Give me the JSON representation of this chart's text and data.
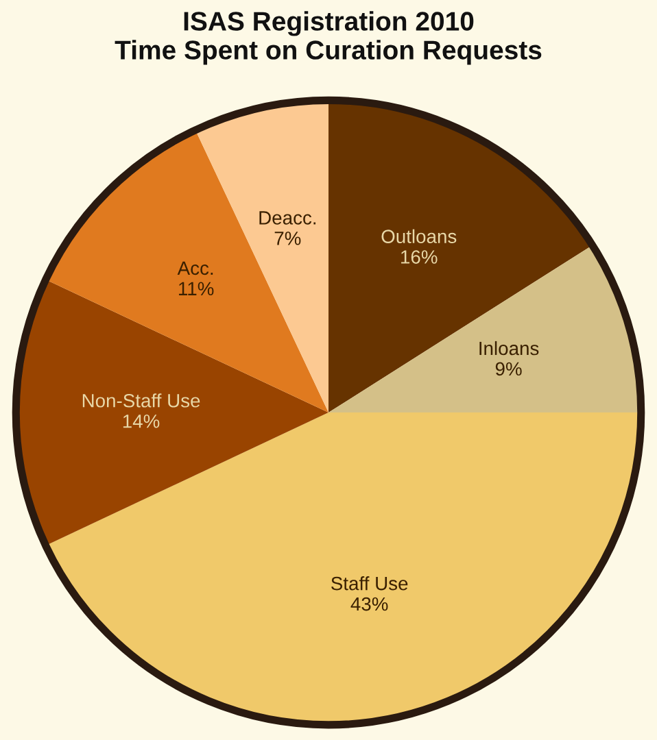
{
  "chart_data": {
    "type": "pie",
    "title": "ISAS Registration 2010\nTime Spent on Curation Requests",
    "categories": [
      "Outloans",
      "Inloans",
      "Staff Use",
      "Non-Staff Use",
      "Acc.",
      "Deacc."
    ],
    "values": [
      16,
      9,
      43,
      14,
      11,
      7
    ],
    "colors": [
      "#663300",
      "#d4c088",
      "#f0c96a",
      "#994400",
      "#e07a1f",
      "#fcc992"
    ],
    "value_labels": [
      "16%",
      "9%",
      "43%",
      "14%",
      "11%",
      "7%"
    ]
  }
}
